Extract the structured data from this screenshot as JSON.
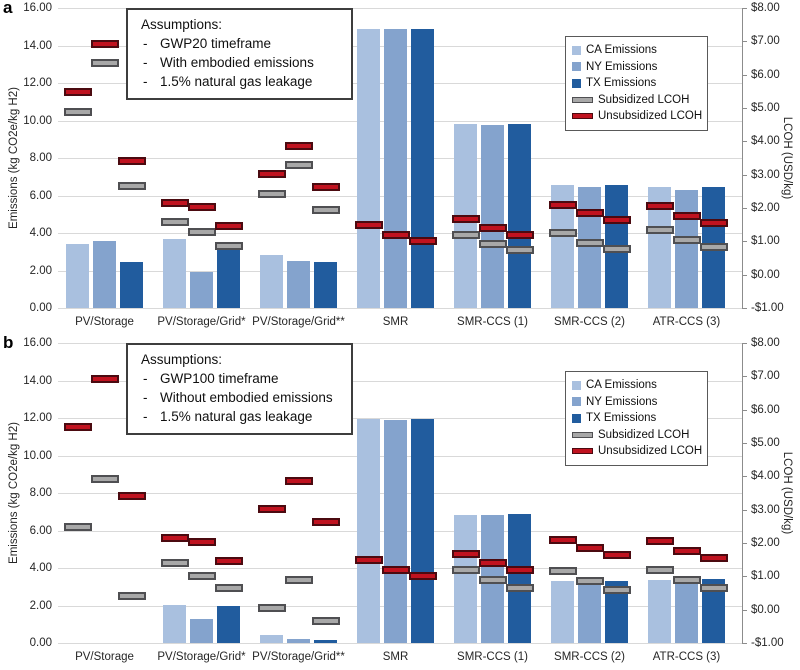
{
  "colors": {
    "ca": "#a9c0df",
    "ny": "#84a3cd",
    "tx": "#215c9e",
    "subsidized_fill": "#a8a8a8",
    "subsidized_border": "#4f4f52",
    "unsubsidized_fill": "#c0121f",
    "unsubsidized_border": "#4b0a10",
    "gridline": "#d9d9d9",
    "axis_line": "#8c8c8c"
  },
  "chart_data": [
    {
      "type": "bar",
      "panel_label": "a",
      "title": "",
      "assumptions_title": "Assumptions:",
      "bullet": "-",
      "assumptions": [
        "GWP20 timeframe",
        "With embodied emissions",
        "1.5% natural gas leakage"
      ],
      "categories": [
        "PV/Storage",
        "PV/Storage/Grid*",
        "PV/Storage/Grid**",
        "SMR",
        "SMR-CCS (1)",
        "SMR-CCS (2)",
        "ATR-CCS (3)"
      ],
      "series": [
        {
          "name": "CA Emissions",
          "color_key": "ca",
          "values": [
            3.4,
            3.7,
            2.85,
            14.9,
            9.8,
            6.55,
            6.45
          ]
        },
        {
          "name": "NY Emissions",
          "color_key": "ny",
          "values": [
            3.55,
            1.9,
            2.5,
            14.9,
            9.75,
            6.45,
            6.3
          ]
        },
        {
          "name": "TX Emissions",
          "color_key": "tx",
          "values": [
            2.45,
            3.2,
            2.45,
            14.9,
            9.8,
            6.55,
            6.45
          ]
        }
      ],
      "lcoh_series": [
        {
          "name": "Subsidized LCOH",
          "color_key": "subsidized",
          "values": [
            [
              4.88,
              6.34,
              2.66
            ],
            [
              1.58,
              1.28,
              0.86
            ],
            [
              2.43,
              3.28,
              1.93
            ],
            null,
            [
              1.19,
              0.91,
              0.74
            ],
            [
              1.25,
              0.95,
              0.78
            ],
            [
              1.34,
              1.04,
              0.82
            ]
          ]
        },
        {
          "name": "Unsubsidized LCOH",
          "color_key": "unsubsidized",
          "values": [
            [
              5.47,
              6.93,
              3.42
            ],
            [
              2.16,
              2.04,
              1.45
            ],
            [
              3.02,
              3.87,
              2.63
            ],
            [
              1.48,
              1.19,
              1.0
            ],
            [
              1.66,
              1.39,
              1.19
            ],
            [
              2.08,
              1.86,
              1.63
            ],
            [
              2.05,
              1.76,
              1.54
            ]
          ]
        }
      ],
      "axes": {
        "left_title": "Emissions (kg CO2e/kg H2)",
        "right_title": "LCOH (USD/kg)",
        "left_range": [
          0,
          16
        ],
        "right_range": [
          -1,
          8
        ],
        "left_ticks": [
          "16.00",
          "14.00",
          "12.00",
          "10.00",
          "8.00",
          "6.00",
          "4.00",
          "2.00",
          "0.00"
        ],
        "right_ticks": [
          "$8.00",
          "$7.00",
          "$6.00",
          "$5.00",
          "$4.00",
          "$3.00",
          "$2.00",
          "$1.00",
          "$0.00",
          "-$1.00"
        ],
        "grid": true,
        "legend_position": "upper-right"
      }
    },
    {
      "type": "bar",
      "panel_label": "b",
      "title": "",
      "assumptions_title": "Assumptions:",
      "bullet": "-",
      "assumptions": [
        "GWP100 timeframe",
        "Without embodied emissions",
        "1.5% natural gas leakage"
      ],
      "categories": [
        "PV/Storage",
        "PV/Storage/Grid*",
        "PV/Storage/Grid**",
        "SMR",
        "SMR-CCS (1)",
        "SMR-CCS (2)",
        "ATR-CCS (3)"
      ],
      "series": [
        {
          "name": "CA Emissions",
          "color_key": "ca",
          "values": [
            0.0,
            2.05,
            0.45,
            11.95,
            6.85,
            3.3,
            3.36
          ]
        },
        {
          "name": "NY Emissions",
          "color_key": "ny",
          "values": [
            0.0,
            1.3,
            0.2,
            11.92,
            6.82,
            3.26,
            3.3
          ]
        },
        {
          "name": "TX Emissions",
          "color_key": "tx",
          "values": [
            0.0,
            2.0,
            0.18,
            11.97,
            6.87,
            3.3,
            3.4
          ]
        }
      ],
      "lcoh_series": [
        {
          "name": "Subsidized LCOH",
          "color_key": "subsidized",
          "values": [
            [
              2.49,
              3.92,
              0.41
            ],
            [
              1.39,
              1.0,
              0.64
            ],
            [
              0.05,
              0.88,
              -0.34
            ],
            null,
            [
              1.19,
              0.89,
              0.65
            ],
            [
              1.16,
              0.86,
              0.6
            ],
            [
              1.18,
              0.9,
              0.65
            ]
          ]
        },
        {
          "name": "Unsubsidized LCOH",
          "color_key": "unsubsidized",
          "values": [
            [
              5.47,
              6.93,
              3.42
            ],
            [
              2.16,
              2.04,
              1.45
            ],
            [
              3.02,
              3.87,
              2.63
            ],
            [
              1.48,
              1.19,
              1.0
            ],
            [
              1.66,
              1.39,
              1.19
            ],
            [
              2.08,
              1.86,
              1.63
            ],
            [
              2.05,
              1.76,
              1.54
            ]
          ]
        }
      ],
      "axes": {
        "left_title": "Emissions (kg CO2e/kg H2)",
        "right_title": "LCOH (USD/kg)",
        "left_range": [
          0,
          16
        ],
        "right_range": [
          -1,
          8
        ],
        "left_ticks": [
          "16.00",
          "14.00",
          "12.00",
          "10.00",
          "8.00",
          "6.00",
          "4.00",
          "2.00",
          "0.00"
        ],
        "right_ticks": [
          "$8.00",
          "$7.00",
          "$6.00",
          "$5.00",
          "$4.00",
          "$3.00",
          "$2.00",
          "$1.00",
          "$0.00",
          "-$1.00"
        ],
        "grid": true,
        "legend_position": "upper-right"
      }
    }
  ]
}
